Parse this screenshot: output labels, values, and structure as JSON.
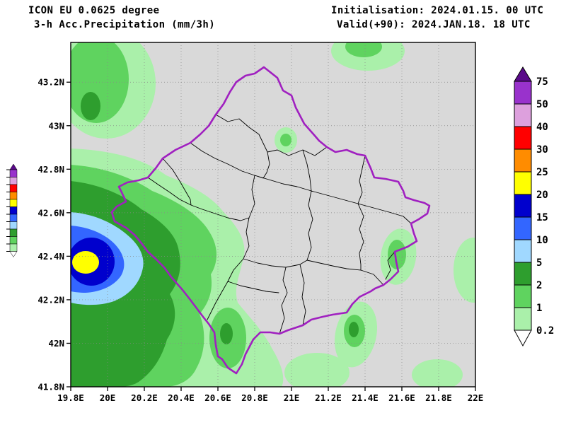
{
  "header": {
    "model": "ICON EU 0.0625 degree",
    "parameter": "3-h Acc.Precipitation (mm/3h)",
    "initialisation": "Initialisation: 2024.01.15. 00 UTC",
    "valid": "Valid(+90): 2024.JAN.18. 18 UTC"
  },
  "map": {
    "region": "Kosovo",
    "x_ticks": [
      "19.8E",
      "20E",
      "20.2E",
      "20.4E",
      "20.6E",
      "20.8E",
      "21E",
      "21.2E",
      "21.4E",
      "21.6E",
      "21.8E",
      "22E"
    ],
    "y_ticks": [
      "41.8N",
      "42N",
      "42.2N",
      "42.4N",
      "42.6N",
      "42.8N",
      "43N",
      "43.2N"
    ]
  },
  "legend": {
    "labels_top_to_bottom": [
      "75",
      "50",
      "40",
      "30",
      "25",
      "20",
      "15",
      "10",
      "5",
      "2",
      "1",
      "0.2"
    ],
    "segment_colors_top_to_bottom": [
      "#9932cc",
      "#dda0dd",
      "#ff0000",
      "#ff8c00",
      "#ffff00",
      "#0000cd",
      "#3366ff",
      "#a0d8ff",
      "#2e9e2e",
      "#5fd35f",
      "#aaf0aa"
    ],
    "above_max_color": "#5a0a8a",
    "below_min_color": "#ffffff"
  },
  "colors": {
    "map_background": "#d9d9d9",
    "kosovo_border": "#a020c0",
    "district_lines": "#000000",
    "grid": "#888888",
    "levels": {
      "0.2": "#aaf0aa",
      "1": "#5fd35f",
      "2": "#2e9e2e",
      "5": "#a0d8ff",
      "10": "#3366ff",
      "15": "#0000cd",
      "20": "#ffff00",
      "25": "#ff8c00",
      "30": "#ff0000",
      "40": "#dda0dd",
      "50": "#9932cc",
      "75": "#5a0a8a"
    }
  },
  "chart_data": {
    "type": "filled-contour-map",
    "variable": "3-h accumulated precipitation",
    "units": "mm/3h",
    "model": "ICON EU 0.0625 degree",
    "initialisation": "2024.01.15. 00 UTC",
    "valid": "2024.JAN.18. 18 UTC",
    "lead_hours": 90,
    "lon_range": [
      19.8,
      22.0
    ],
    "lat_range": [
      41.8,
      43.38
    ],
    "contour_levels_mm": [
      0.2,
      1,
      2,
      5,
      10,
      15,
      20,
      25,
      30,
      40,
      50,
      75
    ],
    "region_outline": "Kosovo",
    "main_features": [
      {
        "description": "intense precipitation maximum with yellow 20-25 mm core",
        "approx_lon": 19.92,
        "approx_lat": 42.35
      },
      {
        "description": "broad green 0.2-5 mm area over western/southwestern domain",
        "approx_lon": 20.2,
        "approx_lat": 42.3
      },
      {
        "description": "scattered light green 0.2-1 mm patches east and south",
        "approx_lon": 21.3,
        "approx_lat": 42.3
      }
    ]
  }
}
